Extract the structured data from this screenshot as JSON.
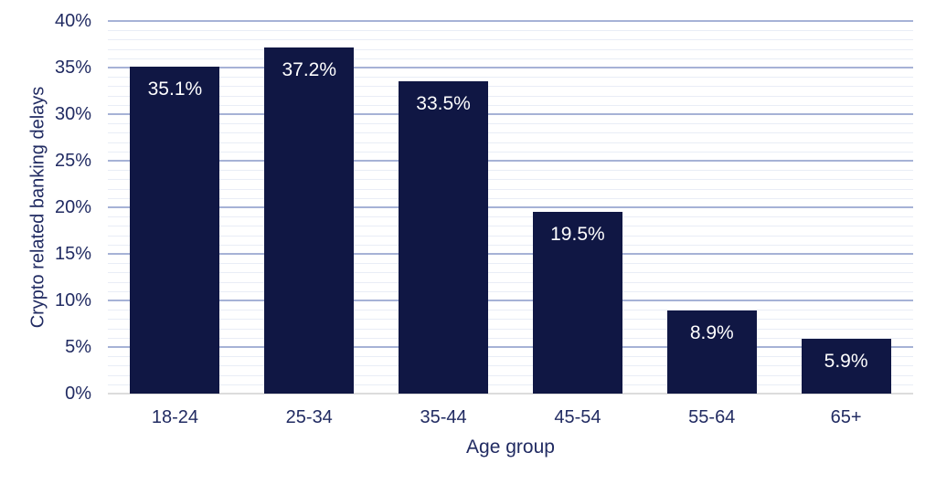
{
  "chart_data": {
    "type": "bar",
    "title": "",
    "xlabel": "Age group",
    "ylabel": "Crypto related banking delays",
    "categories": [
      "18-24",
      "25-34",
      "35-44",
      "45-54",
      "55-64",
      "65+"
    ],
    "values": [
      35.1,
      37.2,
      33.5,
      19.5,
      8.9,
      5.9
    ],
    "value_labels": [
      "35.1%",
      "37.2%",
      "33.5%",
      "19.5%",
      "8.9%",
      "5.9%"
    ],
    "ylim": [
      0,
      40
    ],
    "y_major_step": 5,
    "y_minor_step": 1,
    "y_tick_labels": [
      "0%",
      "5%",
      "10%",
      "15%",
      "20%",
      "25%",
      "30%",
      "35%",
      "40%"
    ],
    "grid": "horizontal major+minor, legend none",
    "colors": {
      "bar": "#101744",
      "axis_text": "#212b62",
      "major_grid": "#a6b2d6",
      "minor_grid": "#e9edf6",
      "baseline": "#dcdcdc",
      "data_label": "#ffffff",
      "background": "#ffffff"
    }
  }
}
